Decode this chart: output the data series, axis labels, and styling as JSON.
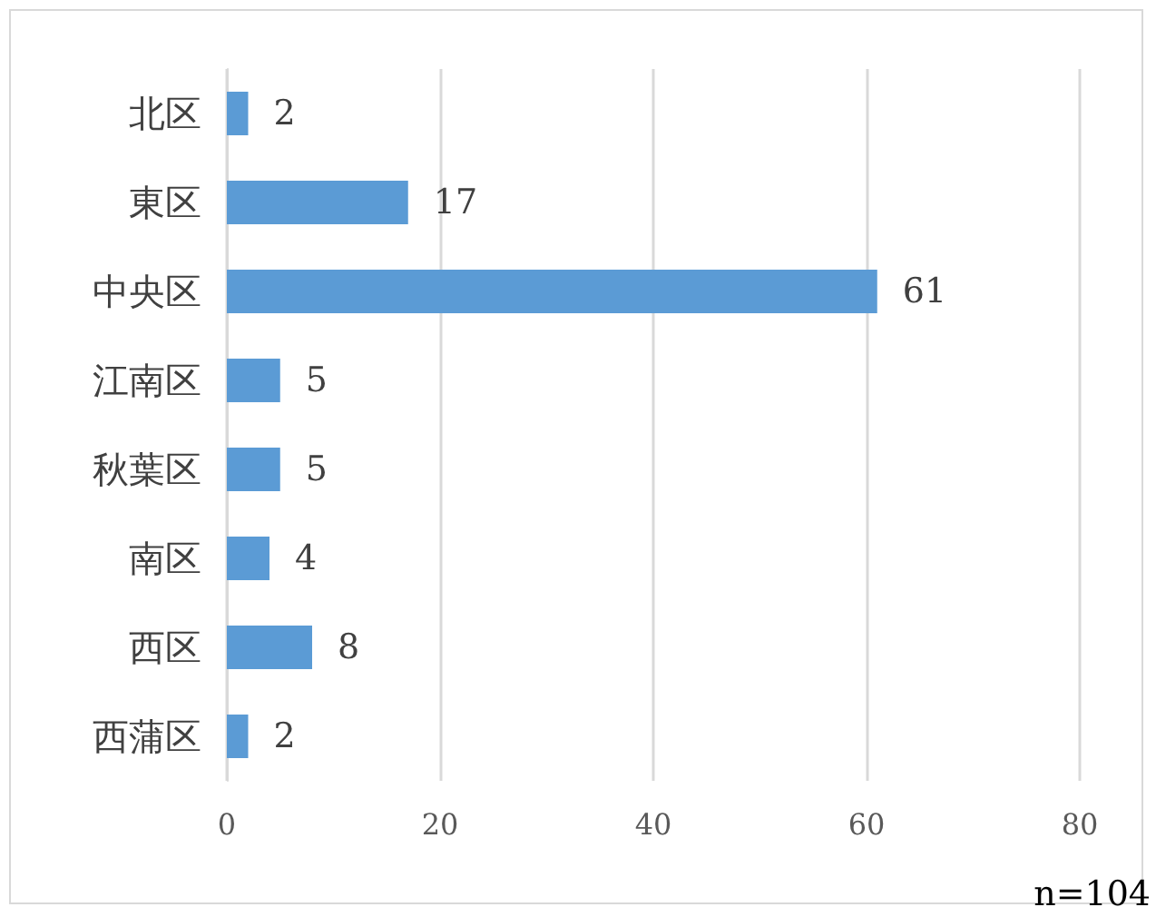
{
  "chart_data": {
    "type": "bar",
    "orientation": "horizontal",
    "categories": [
      "北区",
      "東区",
      "中央区",
      "江南区",
      "秋葉区",
      "南区",
      "西区",
      "西蒲区"
    ],
    "values": [
      2,
      17,
      61,
      5,
      5,
      4,
      8,
      2
    ],
    "color": "#5b9bd5",
    "xlim": [
      0,
      80
    ],
    "xticks": [
      0,
      20,
      40,
      60,
      80
    ],
    "grid": "x",
    "data_labels": true,
    "annotations": [
      "n=104"
    ]
  }
}
